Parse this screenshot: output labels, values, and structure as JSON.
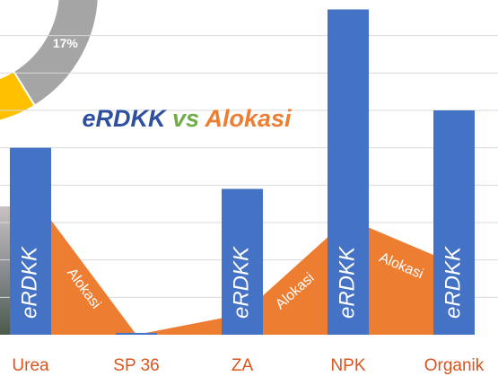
{
  "chart_data": [
    {
      "type": "pie",
      "values": [
        17
      ],
      "value_labels": [
        "17%"
      ],
      "colors": [
        "#a5a5a5"
      ]
    },
    {
      "type": "bar_area",
      "title": "eRDKK vs Alokasi",
      "title_colors": [
        "#2f4f9f",
        "#70ad47",
        "#ed7d31"
      ],
      "categories": [
        "Urea",
        "SP 36",
        "ZA",
        "NPK",
        "Organik"
      ],
      "series": [
        {
          "name": "eRDKK",
          "color": "#4472c4",
          "values": [
            5.0,
            0.05,
            3.9,
            8.7,
            6.0
          ]
        },
        {
          "name": "Alokasi",
          "color": "#ed7d31",
          "values": [
            3.8,
            0.0,
            0.55,
            3.1,
            1.9
          ]
        }
      ],
      "ylim": [
        0,
        9
      ],
      "yticks": [
        1,
        2,
        3,
        4,
        5,
        6,
        7,
        8
      ],
      "grid": true,
      "category_color": "#d9541e"
    }
  ]
}
